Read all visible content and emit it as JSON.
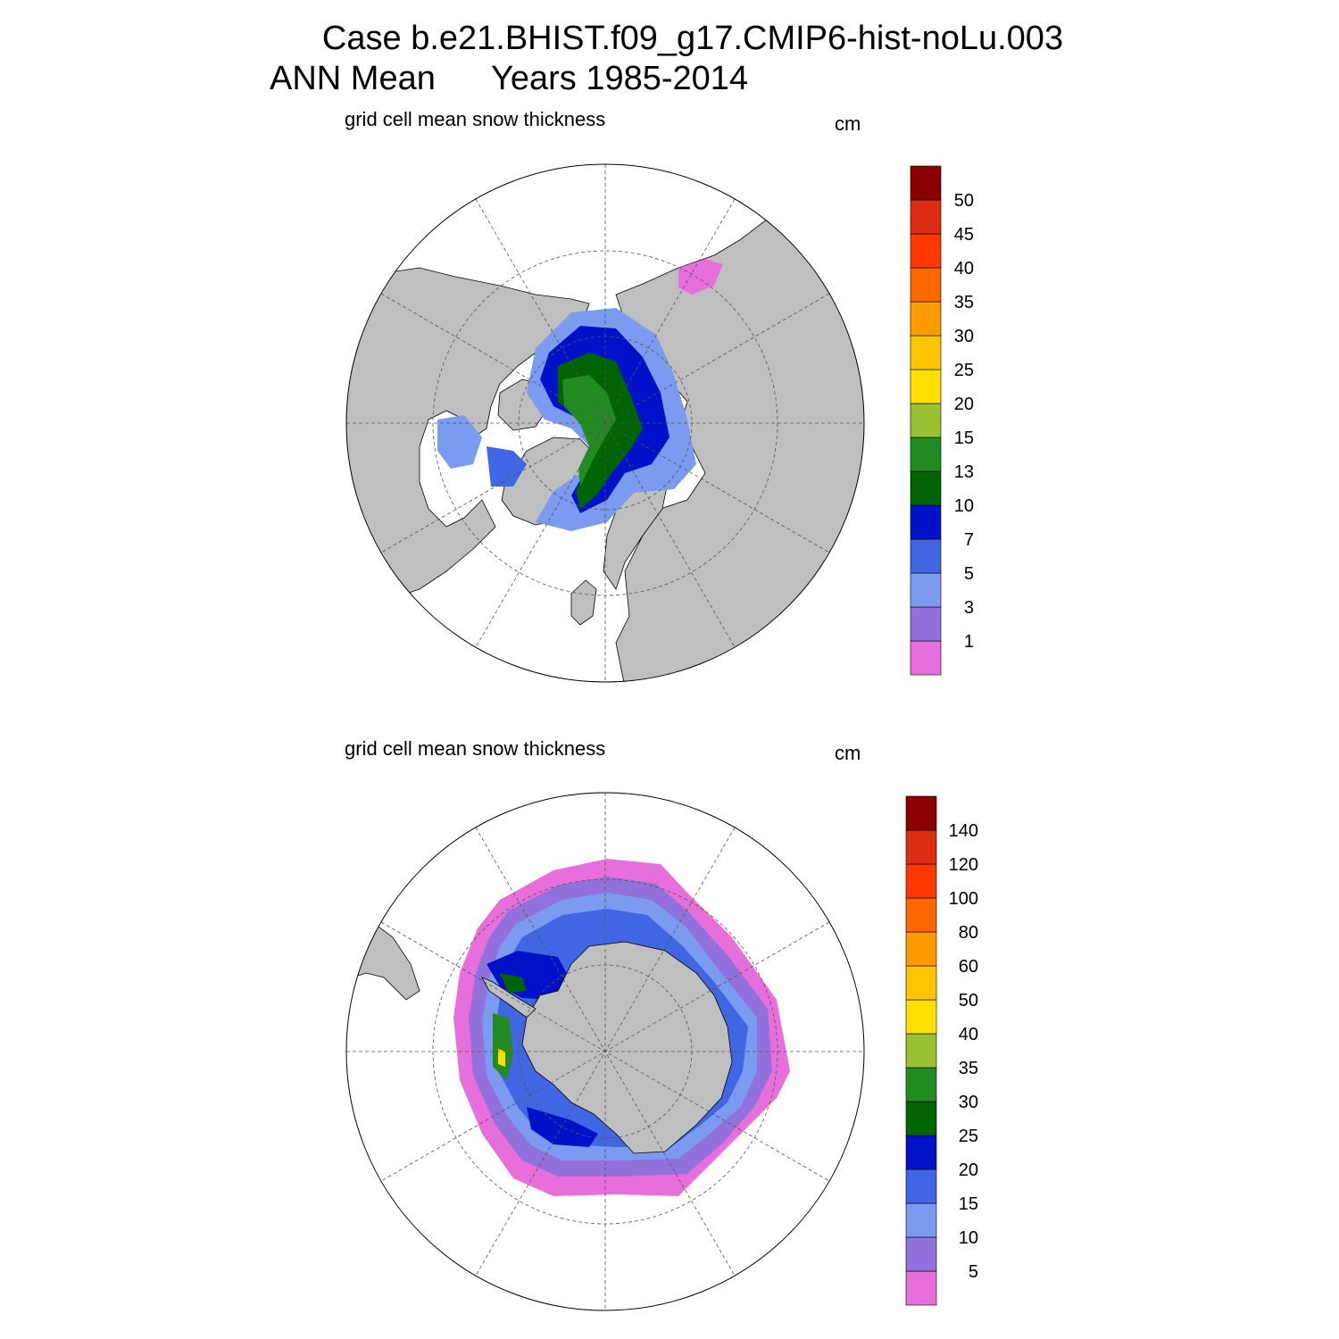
{
  "figure": {
    "title_line1": "Case b.e21.BHIST.f09_g17.CMIP6-hist-noLu.003",
    "title_line2_left": "ANN Mean",
    "title_line2_right": "Years 1985-2014"
  },
  "colors": {
    "land": "#bfbfbf",
    "ocean": "#ffffff",
    "palette": [
      "#e66fdb",
      "#9371dc",
      "#7b9bf0",
      "#4166e3",
      "#0012c8",
      "#006400",
      "#228b22",
      "#9ac132",
      "#ffe000",
      "#ffc400",
      "#ff9b00",
      "#ff6700",
      "#ff3700",
      "#dc2c13",
      "#8b0000"
    ]
  },
  "chart_data": [
    {
      "type": "heatmap",
      "projection": "north polar stereographic",
      "hemisphere": "NH",
      "subtitle": "grid cell mean snow thickness",
      "units": "cm",
      "colorbar_levels": [
        1,
        3,
        5,
        7,
        10,
        13,
        15,
        20,
        25,
        30,
        35,
        40,
        45,
        50
      ],
      "colorbar_labels": [
        "50",
        "45",
        "40",
        "35",
        "30",
        "25",
        "20",
        "15",
        "13",
        "10",
        "7",
        "5",
        "3",
        "1"
      ],
      "grid": true,
      "legend_placement": "right"
    },
    {
      "type": "heatmap",
      "projection": "south polar stereographic",
      "hemisphere": "SH",
      "subtitle": "grid cell mean snow thickness",
      "units": "cm",
      "colorbar_levels": [
        5,
        10,
        15,
        20,
        25,
        30,
        35,
        40,
        50,
        60,
        80,
        100,
        120,
        140
      ],
      "colorbar_labels": [
        "140",
        "120",
        "100",
        "80",
        "60",
        "50",
        "40",
        "35",
        "30",
        "25",
        "20",
        "15",
        "10",
        "5"
      ],
      "grid": true,
      "legend_placement": "right"
    }
  ]
}
